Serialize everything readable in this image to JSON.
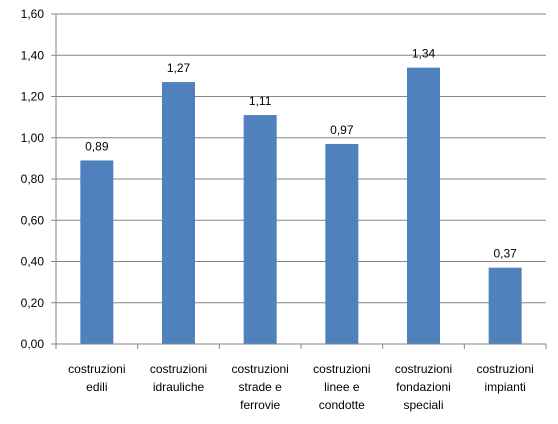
{
  "chart_data": {
    "type": "bar",
    "categories": [
      [
        "costruzioni",
        "edili"
      ],
      [
        "costruzioni",
        "idrauliche"
      ],
      [
        "costruzioni",
        "strade e",
        "ferrovie"
      ],
      [
        "costruzioni",
        "linee e",
        "condotte"
      ],
      [
        "costruzioni",
        "fondazioni",
        "speciali"
      ],
      [
        "costruzioni",
        "impianti"
      ]
    ],
    "values": [
      0.89,
      1.27,
      1.11,
      0.97,
      1.34,
      0.37
    ],
    "data_labels": [
      "0,89",
      "1,27",
      "1,11",
      "0,97",
      "1,34",
      "0,37"
    ],
    "ylim": [
      0,
      1.6
    ],
    "y_ticks": [
      "0,00",
      "0,20",
      "0,40",
      "0,60",
      "0,80",
      "1,00",
      "1,20",
      "1,40",
      "1,60"
    ],
    "grid": true,
    "legend": "none",
    "bar_color": "#4F81BD",
    "grid_color": "#868686",
    "axis_color": "#868686"
  }
}
